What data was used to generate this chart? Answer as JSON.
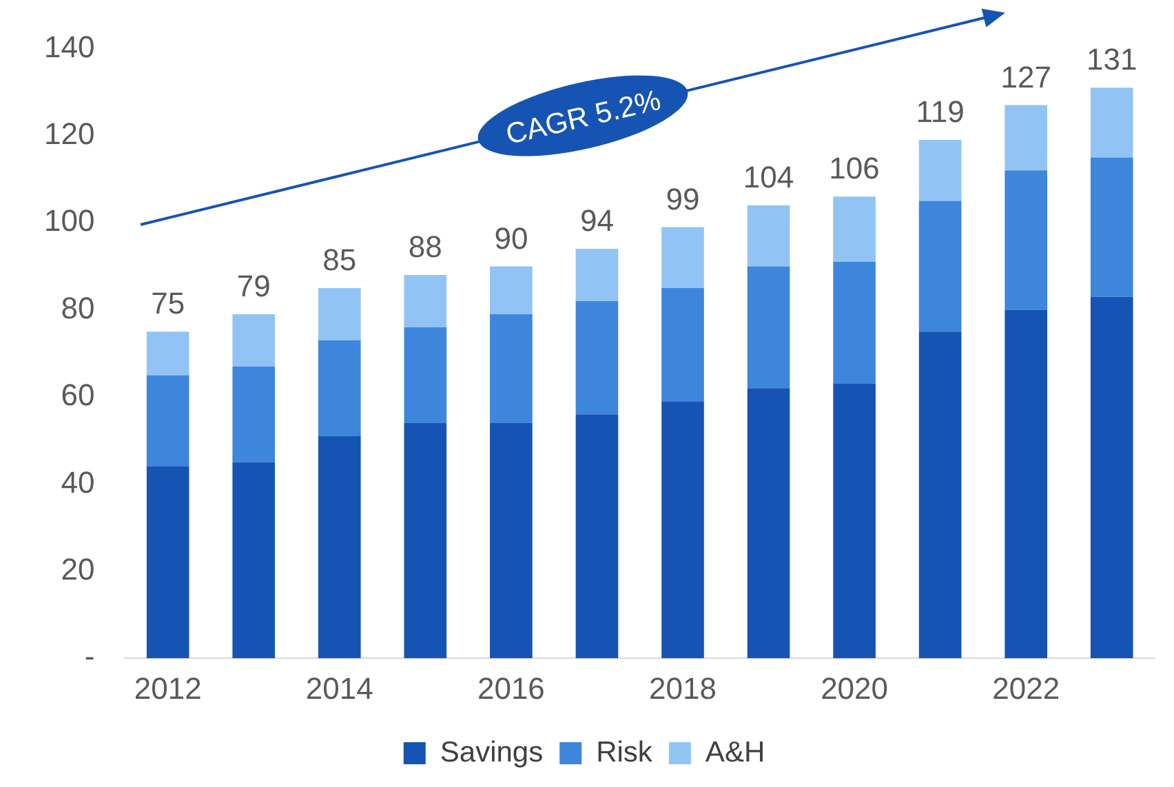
{
  "chart_data": {
    "type": "bar",
    "stacked": true,
    "categories": [
      "2012",
      null,
      "2014",
      null,
      "2016",
      null,
      "2018",
      null,
      "2020",
      null,
      "2022",
      null
    ],
    "series": [
      {
        "name": "Savings",
        "color": "#1654b4",
        "values": [
          44,
          45,
          51,
          54,
          54,
          56,
          59,
          62,
          63,
          75,
          80,
          83
        ]
      },
      {
        "name": "Risk",
        "color": "#3d86dc",
        "values": [
          21,
          22,
          22,
          22,
          25,
          26,
          26,
          28,
          28,
          30,
          32,
          32
        ]
      },
      {
        "name": "A&H",
        "color": "#91c4f5",
        "values": [
          10,
          12,
          12,
          12,
          11,
          12,
          14,
          14,
          15,
          14,
          15,
          16
        ]
      }
    ],
    "totals": [
      "75",
      "79",
      "85",
      "88",
      "90",
      "94",
      "99",
      "104",
      "106",
      "119",
      "127",
      "131"
    ],
    "ylim": [
      0,
      140
    ],
    "yticks": [
      {
        "value": 0,
        "label": "-"
      },
      20,
      40,
      60,
      80,
      100,
      120,
      140
    ],
    "grid": false,
    "legend": "bottom",
    "annotations": [
      "CAGR 5.2%"
    ]
  }
}
